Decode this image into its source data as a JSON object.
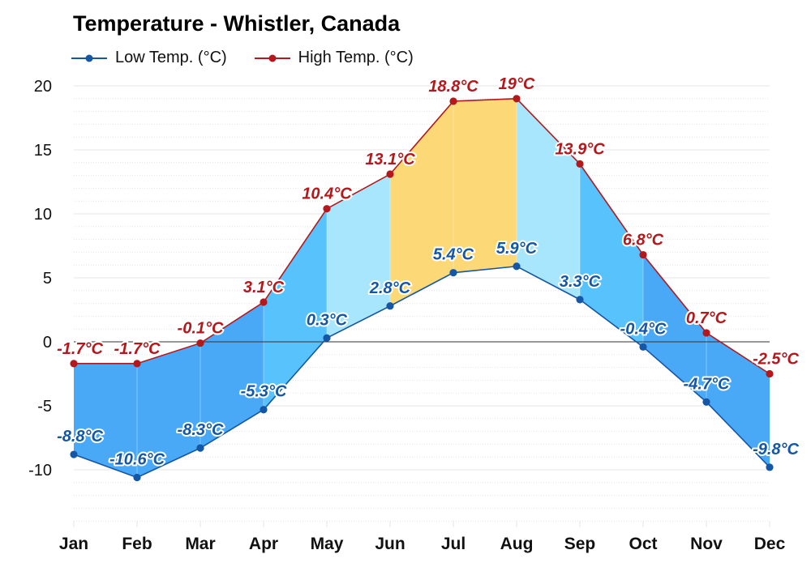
{
  "chart_data": {
    "type": "line",
    "title": "Temperature - Whistler, Canada",
    "categories": [
      "Jan",
      "Feb",
      "Mar",
      "Apr",
      "May",
      "Jun",
      "Jul",
      "Aug",
      "Sep",
      "Oct",
      "Nov",
      "Dec"
    ],
    "yticks": [
      20,
      15,
      10,
      5,
      0,
      -5,
      -10
    ],
    "ylim": [
      -14,
      20
    ],
    "grid": true,
    "legend": "top-left",
    "series": [
      {
        "name": "Low Temp. (°C)",
        "color": "#1357a6",
        "values": [
          -8.8,
          -10.6,
          -8.3,
          -5.3,
          0.3,
          2.8,
          5.4,
          5.9,
          3.3,
          -0.4,
          -4.7,
          -9.8
        ],
        "labels": [
          "-8.8°C",
          "-10.6°C",
          "-8.3°C",
          "-5.3°C",
          "0.3°C",
          "2.8°C",
          "5.4°C",
          "5.9°C",
          "3.3°C",
          "-0.4°C",
          "-4.7°C",
          "-9.8°C"
        ]
      },
      {
        "name": "High Temp. (°C)",
        "color": "#b3191c",
        "values": [
          -1.7,
          -1.7,
          -0.1,
          3.1,
          10.4,
          13.1,
          18.8,
          19,
          13.9,
          6.8,
          0.7,
          -2.5
        ],
        "labels": [
          "-1.7°C",
          "-1.7°C",
          "-0.1°C",
          "3.1°C",
          "10.4°C",
          "13.1°C",
          "18.8°C",
          "19°C",
          "13.9°C",
          "6.8°C",
          "0.7°C",
          "-2.5°C"
        ]
      }
    ],
    "band_colors": [
      "#4aa9f7",
      "#4aa9f7",
      "#4aa9f7",
      "#58c2fc",
      "#a7e6fd",
      "#fdd877",
      "#fdd877",
      "#a7e6fd",
      "#58c2fc",
      "#4aa9f7",
      "#4aa9f7"
    ]
  }
}
